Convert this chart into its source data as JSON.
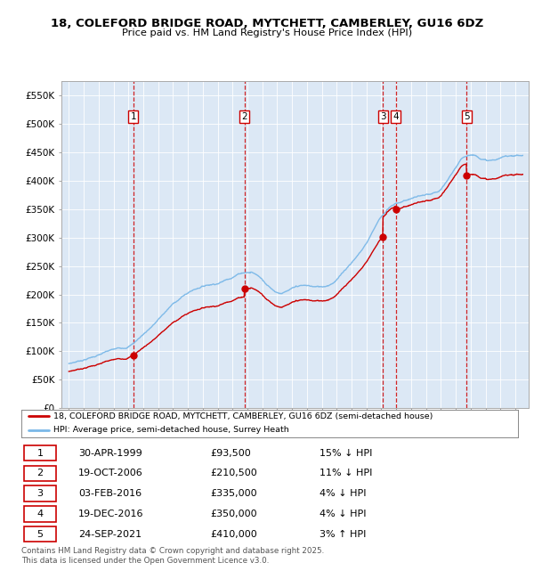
{
  "title": "18, COLEFORD BRIDGE ROAD, MYTCHETT, CAMBERLEY, GU16 6DZ",
  "subtitle": "Price paid vs. HM Land Registry's House Price Index (HPI)",
  "ylim": [
    0,
    575000
  ],
  "yticks": [
    0,
    50000,
    100000,
    150000,
    200000,
    250000,
    300000,
    350000,
    400000,
    450000,
    500000,
    550000
  ],
  "ytick_labels": [
    "£0",
    "£50K",
    "£100K",
    "£150K",
    "£200K",
    "£250K",
    "£300K",
    "£350K",
    "£400K",
    "£450K",
    "£500K",
    "£550K"
  ],
  "plot_bg": "#dce8f5",
  "hpi_line_color": "#7ab8e8",
  "price_line_color": "#cc0000",
  "vline_color": "#cc0000",
  "transactions": [
    {
      "num": 1,
      "date": "30-APR-1999",
      "year": 1999.33,
      "price": 93500
    },
    {
      "num": 2,
      "date": "19-OCT-2006",
      "year": 2006.8,
      "price": 210500
    },
    {
      "num": 3,
      "date": "03-FEB-2016",
      "year": 2016.1,
      "price": 335000
    },
    {
      "num": 4,
      "date": "19-DEC-2016",
      "year": 2016.97,
      "price": 350000
    },
    {
      "num": 5,
      "date": "24-SEP-2021",
      "year": 2021.73,
      "price": 410000
    }
  ],
  "legend_label_red": "18, COLEFORD BRIDGE ROAD, MYTCHETT, CAMBERLEY, GU16 6DZ (semi-detached house)",
  "legend_label_blue": "HPI: Average price, semi-detached house, Surrey Heath",
  "footer": "Contains HM Land Registry data © Crown copyright and database right 2025.\nThis data is licensed under the Open Government Licence v3.0.",
  "table_rows": [
    [
      "1",
      "30-APR-1999",
      "£93,500",
      "15% ↓ HPI"
    ],
    [
      "2",
      "19-OCT-2006",
      "£210,500",
      "11% ↓ HPI"
    ],
    [
      "3",
      "03-FEB-2016",
      "£335,000",
      "4% ↓ HPI"
    ],
    [
      "4",
      "19-DEC-2016",
      "£350,000",
      "4% ↓ HPI"
    ],
    [
      "5",
      "24-SEP-2021",
      "£410,000",
      "3% ↑ HPI"
    ]
  ],
  "hpi_anchors_years": [
    1995,
    1996,
    1997,
    1998,
    1999,
    2000,
    2001,
    2002,
    2003,
    2004,
    2005,
    2006,
    2007,
    2008,
    2009,
    2010,
    2011,
    2012,
    2013,
    2014,
    2015,
    2016,
    2017,
    2018,
    2019,
    2020,
    2021,
    2022,
    2023,
    2024,
    2025
  ],
  "hpi_anchors_vals": [
    78000,
    86000,
    95000,
    103000,
    110000,
    132000,
    158000,
    185000,
    205000,
    218000,
    225000,
    238000,
    248000,
    235000,
    215000,
    220000,
    222000,
    220000,
    235000,
    265000,
    300000,
    348000,
    368000,
    378000,
    383000,
    388000,
    425000,
    448000,
    440000,
    442000,
    448000
  ]
}
